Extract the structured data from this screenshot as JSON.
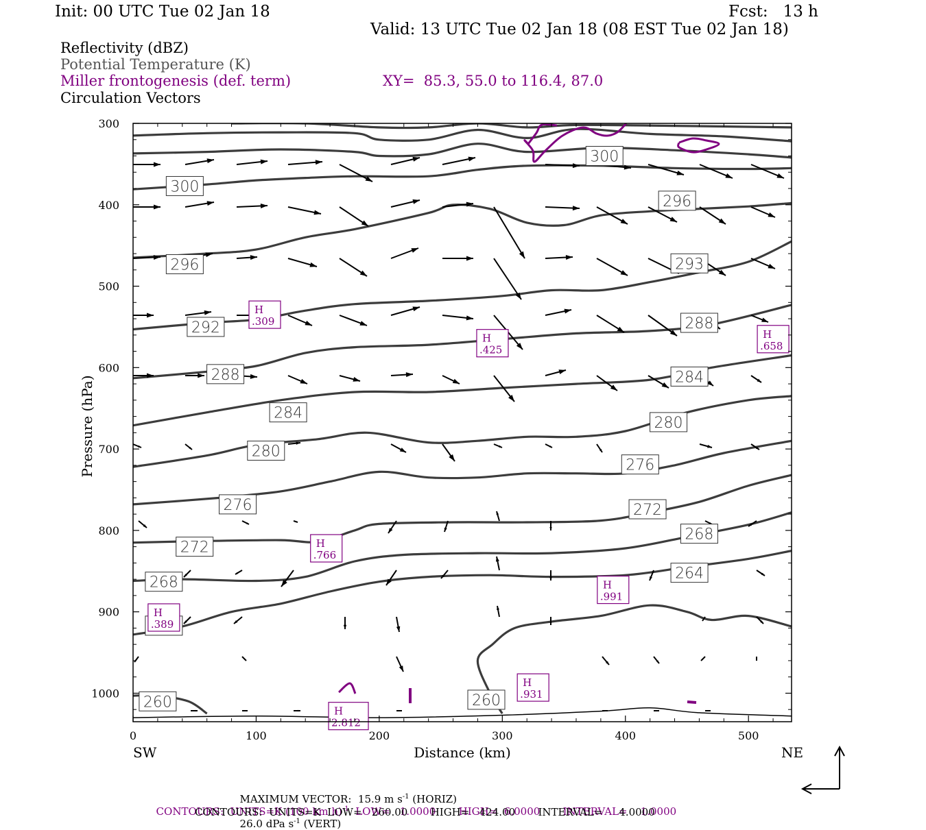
{
  "header": {
    "init": "Init: 00 UTC Tue 02 Jan 18",
    "fcst": "Fcst:   13 h",
    "valid": "Valid: 13 UTC Tue 02 Jan 18 (08 EST Tue 02 Jan 18)"
  },
  "legend": {
    "reflectivity": "Reflectivity (dBZ)",
    "theta": "Potential Temperature (K)",
    "frontogenesis": "Miller frontogenesis (def. term)",
    "xy": "XY=  85.3, 55.0 to 116.4, 87.0",
    "vectors": "Circulation Vectors"
  },
  "footer": {
    "max_vector": "MAXIMUM VECTOR:  15.9 m s",
    "max_vector_horiz": " (HORIZ)",
    "max_vector_vert": "26.0 dPa s",
    "max_vector_vert_tail": " (VERT)",
    "sup": "-1",
    "contours1_a": "CONTOURS:  UNITS=K (100 km h)",
    "contours1_b": "  LOW=   1.0000       HIGH=  6.0000       INTERVAL=    1.0000",
    "contours2": "CONTOURS:  UNITS=K  LOW=   260.00       HIGH=   424.00       INTERVAL=     4.0000"
  },
  "colors": {
    "theta": "#3c3c3c",
    "frontogenesis": "#800080",
    "vectors": "#000000"
  },
  "chart_data": {
    "type": "contour cross-section",
    "xlabel": "Distance (km)",
    "ylabel": "Pressure (hPa)",
    "x_ticks": [
      0,
      100,
      200,
      300,
      400,
      500
    ],
    "y_ticks": [
      300,
      400,
      500,
      600,
      700,
      800,
      900,
      1000
    ],
    "xlim": [
      0,
      535
    ],
    "ylim": [
      1035,
      300
    ],
    "x_end_labels": {
      "left": "SW",
      "right": "NE"
    },
    "theta_contours": [
      {
        "level": 260,
        "points": [
          [
            0,
            1003
          ],
          [
            20,
            1003
          ],
          [
            45,
            1010
          ],
          [
            60,
            1025
          ]
        ]
      },
      {
        "level": 260,
        "points": [
          [
            300,
            1025
          ],
          [
            290,
            1000
          ],
          [
            280,
            960
          ],
          [
            292,
            940
          ],
          [
            310,
            920
          ],
          [
            340,
            912
          ],
          [
            380,
            905
          ],
          [
            420,
            892
          ],
          [
            450,
            900
          ],
          [
            470,
            910
          ],
          [
            500,
            905
          ],
          [
            535,
            918
          ]
        ]
      },
      {
        "level": 264,
        "points": [
          [
            0,
            928
          ],
          [
            40,
            918
          ],
          [
            80,
            900
          ],
          [
            120,
            890
          ],
          [
            160,
            875
          ],
          [
            200,
            863
          ],
          [
            240,
            857
          ],
          [
            290,
            855
          ],
          [
            340,
            857
          ],
          [
            400,
            855
          ],
          [
            450,
            845
          ],
          [
            500,
            835
          ],
          [
            535,
            825
          ]
        ]
      },
      {
        "level": 268,
        "points": [
          [
            0,
            862
          ],
          [
            40,
            860
          ],
          [
            100,
            862
          ],
          [
            140,
            857
          ],
          [
            180,
            838
          ],
          [
            220,
            830
          ],
          [
            280,
            828
          ],
          [
            340,
            828
          ],
          [
            400,
            822
          ],
          [
            450,
            808
          ],
          [
            500,
            793
          ],
          [
            535,
            778
          ]
        ]
      },
      {
        "level": 272,
        "points": [
          [
            0,
            815
          ],
          [
            60,
            813
          ],
          [
            120,
            812
          ],
          [
            150,
            814
          ],
          [
            180,
            800
          ],
          [
            200,
            792
          ],
          [
            260,
            790
          ],
          [
            320,
            790
          ],
          [
            380,
            788
          ],
          [
            420,
            778
          ],
          [
            460,
            765
          ],
          [
            500,
            745
          ],
          [
            535,
            732
          ]
        ]
      },
      {
        "level": 276,
        "points": [
          [
            0,
            768
          ],
          [
            70,
            760
          ],
          [
            120,
            752
          ],
          [
            160,
            740
          ],
          [
            200,
            728
          ],
          [
            240,
            735
          ],
          [
            280,
            735
          ],
          [
            320,
            730
          ],
          [
            360,
            730
          ],
          [
            400,
            730
          ],
          [
            440,
            720
          ],
          [
            480,
            705
          ],
          [
            535,
            690
          ]
        ]
      },
      {
        "level": 280,
        "points": [
          [
            0,
            722
          ],
          [
            60,
            708
          ],
          [
            100,
            695
          ],
          [
            150,
            688
          ],
          [
            190,
            680
          ],
          [
            240,
            692
          ],
          [
            280,
            690
          ],
          [
            320,
            685
          ],
          [
            360,
            685
          ],
          [
            400,
            678
          ],
          [
            450,
            655
          ],
          [
            500,
            640
          ],
          [
            535,
            635
          ]
        ]
      },
      {
        "level": 284,
        "points": [
          [
            0,
            671
          ],
          [
            60,
            655
          ],
          [
            120,
            640
          ],
          [
            180,
            630
          ],
          [
            240,
            630
          ],
          [
            300,
            625
          ],
          [
            360,
            620
          ],
          [
            420,
            615
          ],
          [
            470,
            600
          ],
          [
            535,
            585
          ]
        ]
      },
      {
        "level": 288,
        "points": [
          [
            0,
            613
          ],
          [
            60,
            605
          ],
          [
            100,
            598
          ],
          [
            140,
            582
          ],
          [
            180,
            575
          ],
          [
            240,
            572
          ],
          [
            300,
            565
          ],
          [
            360,
            558
          ],
          [
            420,
            555
          ],
          [
            470,
            547
          ],
          [
            535,
            523
          ]
        ]
      },
      {
        "level": 292,
        "points": [
          [
            0,
            553
          ],
          [
            60,
            545
          ],
          [
            100,
            541
          ],
          [
            140,
            530
          ],
          [
            180,
            522
          ],
          [
            240,
            518
          ],
          [
            300,
            512
          ],
          [
            340,
            505
          ],
          [
            380,
            505
          ],
          [
            420,
            495
          ],
          [
            460,
            483
          ],
          [
            500,
            470
          ],
          [
            535,
            445
          ]
        ]
      },
      {
        "level": 296,
        "points": [
          [
            0,
            465
          ],
          [
            60,
            460
          ],
          [
            100,
            455
          ],
          [
            140,
            440
          ],
          [
            180,
            430
          ],
          [
            240,
            410
          ],
          [
            260,
            400
          ],
          [
            290,
            405
          ],
          [
            320,
            422
          ],
          [
            350,
            425
          ],
          [
            380,
            413
          ],
          [
            420,
            408
          ],
          [
            460,
            405
          ],
          [
            500,
            402
          ],
          [
            535,
            398
          ]
        ]
      },
      {
        "level": 300,
        "points": [
          [
            0,
            381
          ],
          [
            60,
            375
          ],
          [
            100,
            370
          ],
          [
            140,
            367
          ],
          [
            180,
            365
          ],
          [
            240,
            365
          ],
          [
            280,
            357
          ],
          [
            320,
            352
          ],
          [
            380,
            352
          ],
          [
            440,
            355
          ],
          [
            500,
            356
          ],
          [
            535,
            355
          ]
        ]
      },
      {
        "level": 304,
        "points": [
          [
            0,
            337
          ],
          [
            60,
            335
          ],
          [
            120,
            332
          ],
          [
            180,
            335
          ],
          [
            200,
            340
          ],
          [
            240,
            338
          ],
          [
            280,
            325
          ],
          [
            320,
            335
          ],
          [
            380,
            330
          ],
          [
            440,
            333
          ],
          [
            500,
            338
          ],
          [
            535,
            342
          ]
        ]
      },
      {
        "level": 308,
        "points": [
          [
            0,
            315
          ],
          [
            60,
            312
          ],
          [
            120,
            311
          ],
          [
            180,
            312
          ],
          [
            200,
            320
          ],
          [
            240,
            320
          ],
          [
            280,
            308
          ],
          [
            320,
            318
          ],
          [
            360,
            307
          ],
          [
            420,
            313
          ],
          [
            480,
            316
          ],
          [
            535,
            322
          ]
        ]
      },
      {
        "level": 312,
        "points": [
          [
            80,
            300
          ],
          [
            140,
            300
          ],
          [
            200,
            305
          ],
          [
            240,
            305
          ],
          [
            280,
            300
          ],
          [
            320,
            305
          ],
          [
            360,
            302
          ],
          [
            440,
            303
          ],
          [
            535,
            305
          ]
        ]
      }
    ],
    "frontogenesis_maxima": [
      {
        "x": 107,
        "p": 535,
        "label": "H",
        "value": ".309"
      },
      {
        "x": 292,
        "p": 570,
        "label": "H",
        "value": ".425"
      },
      {
        "x": 520,
        "p": 565,
        "label": "H",
        "value": ".658"
      },
      {
        "x": 157,
        "p": 822,
        "label": "H",
        "value": ".766"
      },
      {
        "x": 390,
        "p": 873,
        "label": "H",
        "value": ".991"
      },
      {
        "x": 25,
        "p": 907,
        "label": "H",
        "value": ".389"
      },
      {
        "x": 325,
        "p": 993,
        "label": "H",
        "value": ".931"
      },
      {
        "x": 175,
        "p": 1028,
        "label": "H",
        "value": "2.812"
      }
    ]
  }
}
